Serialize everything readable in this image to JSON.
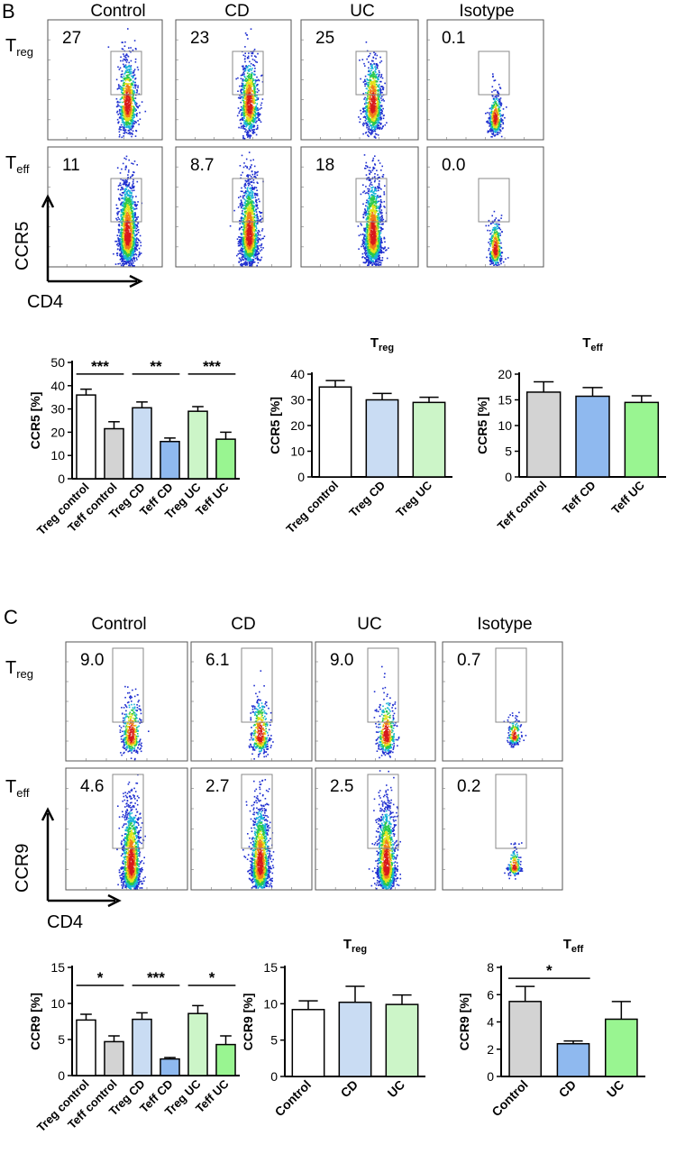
{
  "panels": [
    {
      "letter": "B",
      "marker": "CCR5",
      "columns": [
        "Control",
        "CD",
        "UC",
        "Isotype"
      ],
      "rows": [
        {
          "label_main": "T",
          "label_sub": "reg",
          "values": [
            "27",
            "23",
            "25",
            "0.1"
          ]
        },
        {
          "label_main": "T",
          "label_sub": "eff",
          "values": [
            "11",
            "8.7",
            "18",
            "0.0"
          ]
        }
      ],
      "x_axis_label": "CD4",
      "y_axis_label": "CCR5"
    },
    {
      "letter": "C",
      "marker": "CCR9",
      "columns": [
        "Control",
        "CD",
        "UC",
        "Isotype"
      ],
      "rows": [
        {
          "label_main": "T",
          "label_sub": "reg",
          "values": [
            "9.0",
            "6.1",
            "9.0",
            "0.7"
          ]
        },
        {
          "label_main": "T",
          "label_sub": "eff",
          "values": [
            "4.6",
            "2.7",
            "2.5",
            "0.2"
          ]
        }
      ],
      "x_axis_label": "CD4",
      "y_axis_label": "CCR9"
    }
  ],
  "colors": {
    "white": "#ffffff",
    "grey": "#d3d3d3",
    "light_blue": "#c9dcf3",
    "blue": "#8fb9ef",
    "light_green": "#ccf5c8",
    "green": "#99f591"
  },
  "chart_data": [
    {
      "type": "bar",
      "title": "",
      "ylabel": "CCR5 [%]",
      "ylim": [
        0,
        50
      ],
      "yticks": [
        0,
        10,
        20,
        30,
        40,
        50
      ],
      "categories": [
        "Treg control",
        "Teff control",
        "Treg CD",
        "Teff CD",
        "Treg UC",
        "Teff UC"
      ],
      "values": [
        36,
        21.5,
        30.5,
        16,
        29,
        17
      ],
      "errors": [
        2.5,
        3,
        2.5,
        1.5,
        2,
        3
      ],
      "colors": [
        "white",
        "grey",
        "light_blue",
        "blue",
        "light_green",
        "green"
      ],
      "significance": [
        {
          "from": 0,
          "to": 1,
          "label": "***",
          "y": 45
        },
        {
          "from": 2,
          "to": 3,
          "label": "**",
          "y": 45
        },
        {
          "from": 4,
          "to": 5,
          "label": "***",
          "y": 45
        }
      ]
    },
    {
      "type": "bar",
      "title_main": "T",
      "title_sub": "reg",
      "ylabel": "CCR5 [%]",
      "ylim": [
        0,
        40
      ],
      "yticks": [
        0,
        10,
        20,
        30,
        40
      ],
      "categories": [
        "Treg control",
        "Treg CD",
        "Treg UC"
      ],
      "values": [
        35,
        30,
        29
      ],
      "errors": [
        2.5,
        2.5,
        2
      ],
      "colors": [
        "white",
        "light_blue",
        "light_green"
      ],
      "significance": []
    },
    {
      "type": "bar",
      "title_main": "T",
      "title_sub": "eff",
      "ylabel": "CCR5 [%]",
      "ylim": [
        0,
        20
      ],
      "yticks": [
        0,
        5,
        10,
        15,
        20
      ],
      "categories": [
        "Teff control",
        "Teff CD",
        "Teff UC"
      ],
      "values": [
        16.5,
        15.7,
        14.5
      ],
      "errors": [
        2,
        1.7,
        1.3
      ],
      "colors": [
        "grey",
        "blue",
        "green"
      ],
      "significance": []
    },
    {
      "type": "bar",
      "title": "",
      "ylabel": "CCR9 [%]",
      "ylim": [
        0,
        15
      ],
      "yticks": [
        0,
        5,
        10,
        15
      ],
      "categories": [
        "Treg control",
        "Teff control",
        "Treg CD",
        "Teff CD",
        "Treg UC",
        "Teff UC"
      ],
      "values": [
        7.7,
        4.7,
        7.8,
        2.3,
        8.6,
        4.3
      ],
      "errors": [
        0.8,
        0.8,
        0.9,
        0.2,
        1.1,
        1.2
      ],
      "colors": [
        "white",
        "grey",
        "light_blue",
        "blue",
        "light_green",
        "green"
      ],
      "significance": [
        {
          "from": 0,
          "to": 1,
          "label": "*",
          "y": 12.5
        },
        {
          "from": 2,
          "to": 3,
          "label": "***",
          "y": 12.5
        },
        {
          "from": 4,
          "to": 5,
          "label": "*",
          "y": 12.5
        }
      ]
    },
    {
      "type": "bar",
      "title_main": "T",
      "title_sub": "reg",
      "ylabel": "CCR9 [%]",
      "ylim": [
        0,
        15
      ],
      "yticks": [
        0,
        5,
        10,
        15
      ],
      "categories": [
        "Control",
        "CD",
        "UC"
      ],
      "values": [
        9.2,
        10.2,
        9.9
      ],
      "errors": [
        1.2,
        2.2,
        1.3
      ],
      "colors": [
        "white",
        "light_blue",
        "light_green"
      ],
      "significance": []
    },
    {
      "type": "bar",
      "title_main": "T",
      "title_sub": "eff",
      "ylabel": "CCR9 [%]",
      "ylim": [
        0,
        8
      ],
      "yticks": [
        0,
        2,
        4,
        6,
        8
      ],
      "categories": [
        "Control",
        "CD",
        "UC"
      ],
      "values": [
        5.5,
        2.4,
        4.2
      ],
      "errors": [
        1.1,
        0.2,
        1.3
      ],
      "colors": [
        "grey",
        "blue",
        "green"
      ],
      "significance": [
        {
          "from": 0,
          "to": 1,
          "label": "*",
          "y": 7.2
        }
      ]
    }
  ]
}
